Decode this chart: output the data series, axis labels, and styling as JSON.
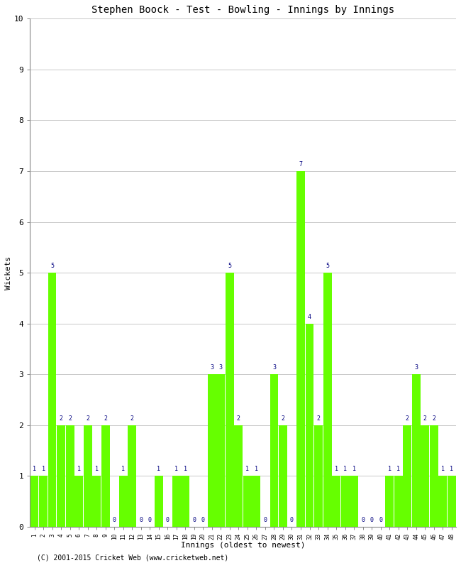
{
  "title": "Stephen Boock - Test - Bowling - Innings by Innings",
  "xlabel": "Innings (oldest to newest)",
  "ylabel": "Wickets",
  "copyright": "(C) 2001-2015 Cricket Web (www.cricketweb.net)",
  "ylim": [
    0,
    10
  ],
  "yticks": [
    0,
    1,
    2,
    3,
    4,
    5,
    6,
    7,
    8,
    9,
    10
  ],
  "bar_color": "#66FF00",
  "label_color": "#000080",
  "innings": [
    1,
    2,
    3,
    4,
    5,
    6,
    7,
    8,
    9,
    10,
    11,
    12,
    13,
    14,
    15,
    16,
    17,
    18,
    19,
    20,
    21,
    22,
    23,
    24,
    25,
    26,
    27,
    28,
    29,
    30,
    31,
    32,
    33,
    34,
    35,
    36,
    37,
    38,
    39,
    40,
    41,
    42,
    43,
    44,
    45,
    46,
    47,
    48
  ],
  "wickets": [
    1,
    1,
    5,
    2,
    2,
    1,
    2,
    1,
    2,
    0,
    1,
    2,
    0,
    0,
    1,
    0,
    1,
    1,
    0,
    0,
    3,
    3,
    5,
    2,
    1,
    1,
    0,
    3,
    2,
    0,
    7,
    4,
    2,
    5,
    1,
    1,
    1,
    0,
    0,
    0,
    1,
    1,
    2,
    3,
    2,
    2,
    1,
    1
  ]
}
